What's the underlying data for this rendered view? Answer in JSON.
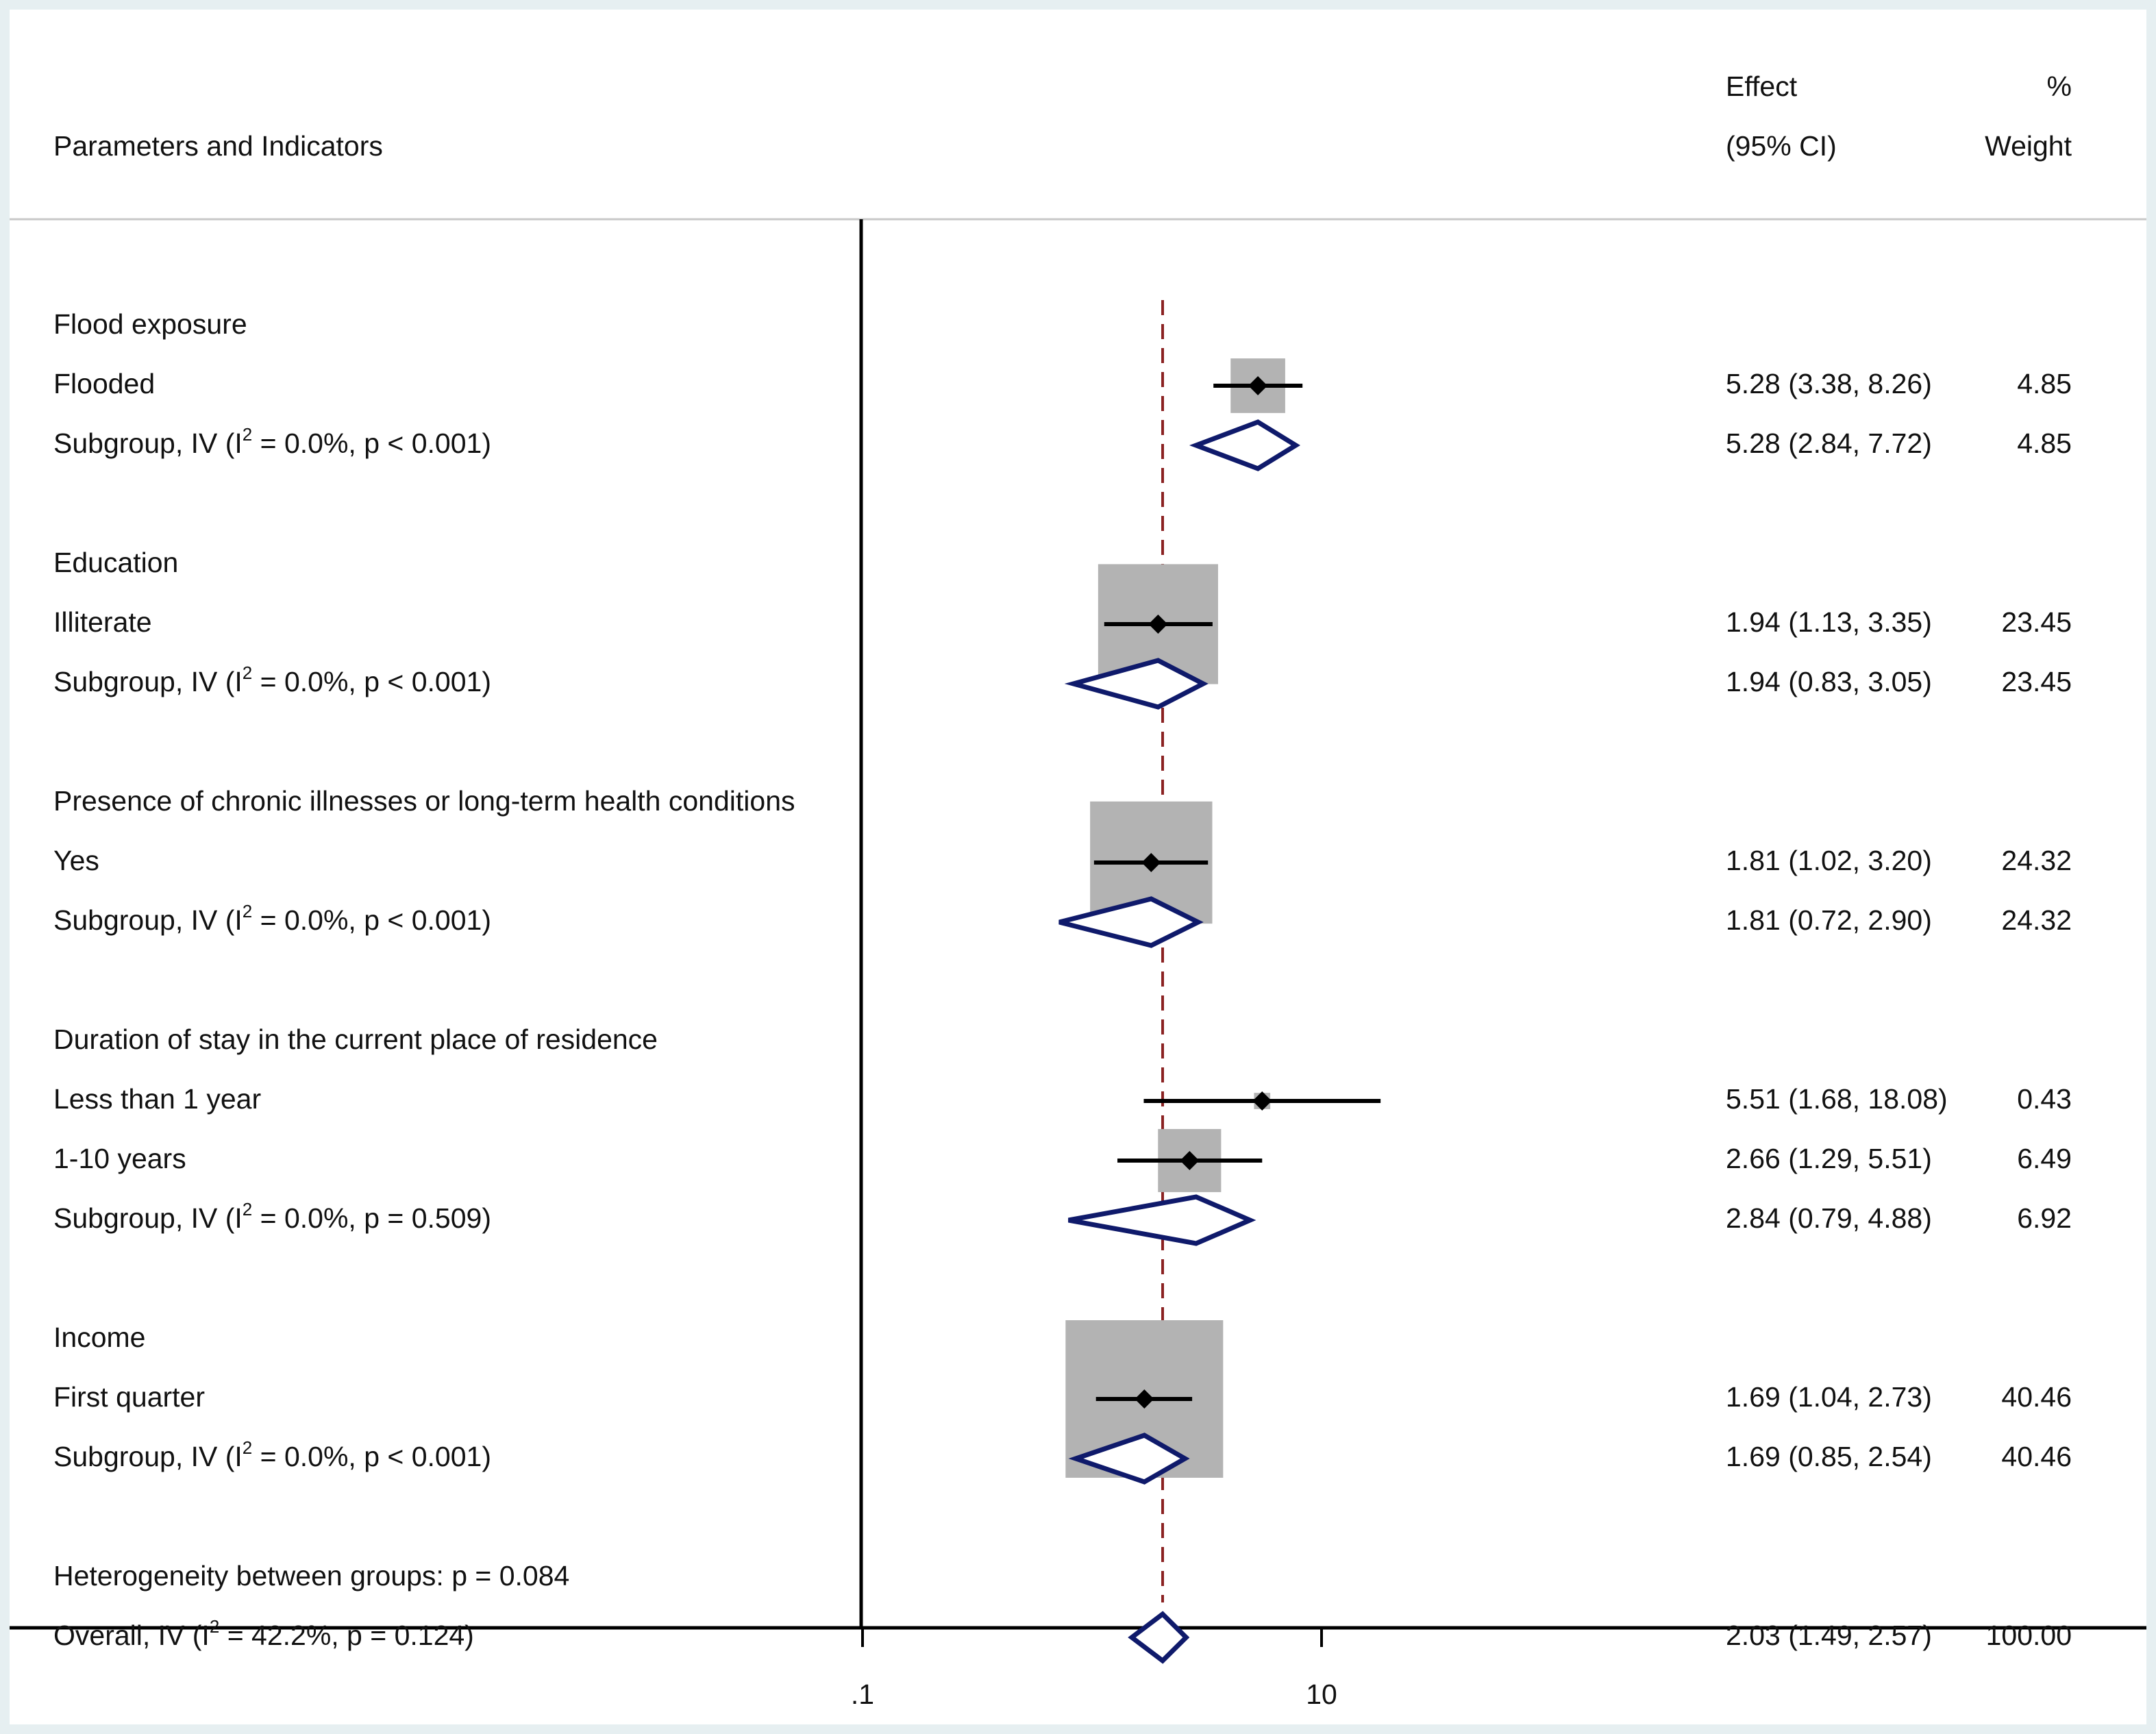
{
  "chart_data": {
    "type": "forest",
    "x_scale": "log",
    "x_ticks": [
      {
        "label": ".1",
        "value": 0.1
      },
      {
        "label": "10",
        "value": 10
      }
    ],
    "reference_line": 2.03,
    "reference_line_color": "#8b2222",
    "header": {
      "label_column": "Parameters and Indicators",
      "effect_line1": "Effect",
      "effect_line2": "(95% CI)",
      "weight_line1": "%",
      "weight_line2": "Weight"
    },
    "rows": [
      {
        "kind": "group",
        "label": "Flood exposure"
      },
      {
        "kind": "study",
        "label": "Flooded",
        "effect": 5.28,
        "lo": 3.38,
        "hi": 8.26,
        "weight": 4.85,
        "effect_text": "5.28 (3.38, 8.26)",
        "weight_text": "4.85"
      },
      {
        "kind": "subgroup",
        "label_pre": "Subgroup, IV (I",
        "label_post": " = 0.0%, p < 0.001)",
        "effect": 5.28,
        "lo": 2.84,
        "hi": 7.72,
        "effect_text": "5.28 (2.84, 7.72)",
        "weight_text": "4.85"
      },
      {
        "kind": "spacer"
      },
      {
        "kind": "group",
        "label": "Education"
      },
      {
        "kind": "study",
        "label": "Illiterate",
        "effect": 1.94,
        "lo": 1.13,
        "hi": 3.35,
        "weight": 23.45,
        "effect_text": "1.94 (1.13, 3.35)",
        "weight_text": "23.45"
      },
      {
        "kind": "subgroup",
        "label_pre": "Subgroup, IV (I",
        "label_post": " = 0.0%, p < 0.001)",
        "effect": 1.94,
        "lo": 0.83,
        "hi": 3.05,
        "effect_text": "1.94 (0.83, 3.05)",
        "weight_text": "23.45"
      },
      {
        "kind": "spacer"
      },
      {
        "kind": "group",
        "label": "Presence of chronic illnesses or long-term health conditions"
      },
      {
        "kind": "study",
        "label": "Yes",
        "effect": 1.81,
        "lo": 1.02,
        "hi": 3.2,
        "weight": 24.32,
        "effect_text": "1.81 (1.02, 3.20)",
        "weight_text": "24.32"
      },
      {
        "kind": "subgroup",
        "label_pre": "Subgroup, IV (I",
        "label_post": " = 0.0%, p < 0.001)",
        "effect": 1.81,
        "lo": 0.72,
        "hi": 2.9,
        "effect_text": "1.81 (0.72, 2.90)",
        "weight_text": "24.32"
      },
      {
        "kind": "spacer"
      },
      {
        "kind": "group",
        "label": "Duration of stay in the current place of residence"
      },
      {
        "kind": "study",
        "label": "Less than 1 year",
        "effect": 5.51,
        "lo": 1.68,
        "hi": 18.08,
        "weight": 0.43,
        "effect_text": "5.51 (1.68, 18.08)",
        "weight_text": "0.43"
      },
      {
        "kind": "study",
        "label": "1-10 years",
        "effect": 2.66,
        "lo": 1.29,
        "hi": 5.51,
        "weight": 6.49,
        "effect_text": "2.66 (1.29, 5.51)",
        "weight_text": "6.49"
      },
      {
        "kind": "subgroup",
        "label_pre": "Subgroup, IV (I",
        "label_post": " = 0.0%, p = 0.509)",
        "effect": 2.84,
        "lo": 0.79,
        "hi": 4.88,
        "effect_text": "2.84 (0.79, 4.88)",
        "weight_text": "6.92"
      },
      {
        "kind": "spacer"
      },
      {
        "kind": "group",
        "label": "Income"
      },
      {
        "kind": "study",
        "label": "First quarter",
        "effect": 1.69,
        "lo": 1.04,
        "hi": 2.73,
        "weight": 40.46,
        "effect_text": "1.69 (1.04, 2.73)",
        "weight_text": "40.46"
      },
      {
        "kind": "subgroup",
        "label_pre": "Subgroup, IV (I",
        "label_post": " = 0.0%, p < 0.001)",
        "effect": 1.69,
        "lo": 0.85,
        "hi": 2.54,
        "effect_text": "1.69 (0.85, 2.54)",
        "weight_text": "40.46"
      },
      {
        "kind": "spacer"
      },
      {
        "kind": "group",
        "label": "Heterogeneity between groups: p = 0.084"
      },
      {
        "kind": "overall",
        "label_pre": "Overall, IV (I",
        "label_post": " = 42.2%, p = 0.124)",
        "effect": 2.03,
        "lo": 1.49,
        "hi": 2.57,
        "effect_text": "2.03 (1.49, 2.57)",
        "weight_text": "100.00"
      }
    ],
    "superscript": "2",
    "colors": {
      "weight_box": "#b3b3b3",
      "point": "#000000",
      "diamond_stroke": "#0f1a6b",
      "text": "#111111"
    }
  }
}
